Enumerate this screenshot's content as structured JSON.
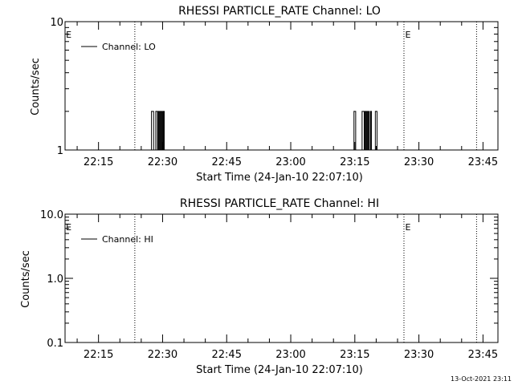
{
  "footer_timestamp": "13-Oct-2021 23:11",
  "chart_data": [
    {
      "type": "line",
      "title": "RHESSI PARTICLE_RATE Channel: LO",
      "xlabel": "Start Time (24-Jan-10 22:07:10)",
      "ylabel": "Counts/sec",
      "x_ticks": [
        "22:15",
        "22:30",
        "22:45",
        "23:00",
        "23:15",
        "23:30",
        "23:45"
      ],
      "x_tick_minutes": [
        1335,
        1350,
        1365,
        1380,
        1395,
        1410,
        1425
      ],
      "xlim_minutes": [
        1327.167,
        1428.5
      ],
      "y_scale": "log",
      "ylim": [
        1,
        10
      ],
      "y_ticks": [
        1,
        10
      ],
      "y_tick_labels": [
        "1",
        "10"
      ],
      "legend": {
        "position": "top-left",
        "entries": [
          "Channel: LO"
        ]
      },
      "eclipse_marker_label": "E",
      "eclipse_lines_minutes": [
        1343.5,
        1406.5,
        1423.5
      ],
      "eclipse_labels_minutes": [
        1327.2,
        1406.6
      ],
      "series": [
        {
          "name": "Channel: LO",
          "x_minutes": [
            1347.2,
            1347.4,
            1347.7,
            1347.9,
            1348.2,
            1348.4,
            1348.6,
            1348.8,
            1349.0,
            1349.2,
            1349.4,
            1349.6,
            1349.8,
            1350.0,
            1350.2,
            1350.4,
            1394.6,
            1394.8,
            1395.0,
            1395.2,
            1396.5,
            1396.7,
            1397.0,
            1397.2,
            1397.4,
            1397.6,
            1397.8,
            1398.0,
            1398.2,
            1398.4,
            1398.7,
            1398.9,
            1399.6,
            1399.8,
            1400.0,
            1400.2
          ],
          "values": [
            1,
            2,
            2,
            1,
            1,
            2,
            2,
            1,
            2,
            1,
            2,
            1,
            2,
            1,
            2,
            1,
            1,
            2,
            2,
            1,
            1,
            2,
            2,
            1,
            2,
            1,
            2,
            1,
            2,
            1,
            2,
            1,
            1,
            2,
            2,
            1
          ]
        }
      ]
    },
    {
      "type": "line",
      "title": "RHESSI PARTICLE_RATE Channel: HI",
      "xlabel": "Start Time (24-Jan-10 22:07:10)",
      "ylabel": "Counts/sec",
      "x_ticks": [
        "22:15",
        "22:30",
        "22:45",
        "23:00",
        "23:15",
        "23:30",
        "23:45"
      ],
      "x_tick_minutes": [
        1335,
        1350,
        1365,
        1380,
        1395,
        1410,
        1425
      ],
      "xlim_minutes": [
        1327.167,
        1428.5
      ],
      "y_scale": "log",
      "ylim": [
        0.1,
        10
      ],
      "y_ticks": [
        0.1,
        1,
        10
      ],
      "y_tick_labels": [
        "0.1",
        "1.0",
        "10.0"
      ],
      "legend": {
        "position": "top-left",
        "entries": [
          "Channel: HI"
        ]
      },
      "eclipse_marker_label": "E",
      "eclipse_lines_minutes": [
        1343.5,
        1406.5,
        1423.5
      ],
      "eclipse_labels_minutes": [
        1327.2,
        1406.6
      ],
      "series": [
        {
          "name": "Channel: HI",
          "x_minutes": [],
          "values": []
        }
      ]
    }
  ]
}
